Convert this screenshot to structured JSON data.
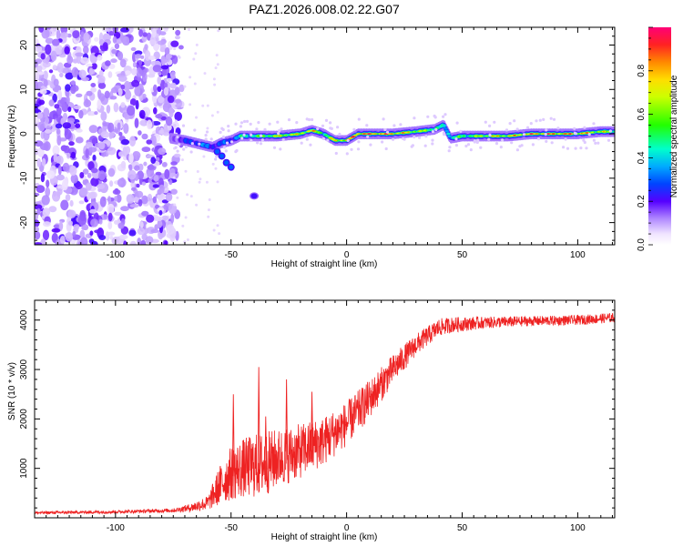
{
  "title": "PAZ1.2026.008.02.22.G07",
  "chart_data": [
    {
      "type": "heatmap",
      "name": "spectrogram",
      "xlabel": "Height of straight line (km)",
      "ylabel": "Frequency (Hz)",
      "xlim": [
        -135,
        116
      ],
      "ylim": [
        -25,
        24
      ],
      "xticks": [
        -100,
        -50,
        0,
        50,
        100
      ],
      "yticks": [
        -20,
        -10,
        0,
        10,
        20
      ],
      "colorbar": {
        "label": "Normalized spectral amplitude",
        "range": [
          0,
          1
        ],
        "ticks": [
          "0.0",
          "0.2",
          "0.4",
          "0.6",
          "0.8"
        ]
      },
      "noise_region_km": [
        -135,
        -75
      ],
      "ridge": {
        "x": [
          -76,
          -70,
          -62,
          -58,
          -54,
          -50,
          -46,
          -40,
          -30,
          -20,
          -15,
          -10,
          -5,
          0,
          5,
          10,
          20,
          30,
          38,
          42,
          45,
          50,
          60,
          70,
          80,
          90,
          100,
          110,
          116
        ],
        "freq": [
          -1,
          -1.5,
          -2.5,
          -3,
          -2,
          -1.5,
          -0.5,
          -0.5,
          -0.5,
          0,
          0.8,
          0,
          -1.5,
          -1.5,
          0,
          0,
          0,
          0.5,
          1,
          2,
          -1,
          -0.5,
          -0.5,
          -0.5,
          0,
          0,
          0,
          0.5,
          0.5
        ],
        "amplitude": [
          0.15,
          0.25,
          0.35,
          0.3,
          0.3,
          0.3,
          0.45,
          0.55,
          0.75,
          0.75,
          0.85,
          0.55,
          0.8,
          0.85,
          0.95,
          0.95,
          0.9,
          0.75,
          0.6,
          0.4,
          0.5,
          0.55,
          0.75,
          0.8,
          0.9,
          0.9,
          0.9,
          0.75,
          0.7
        ]
      },
      "branch": {
        "x": [
          -56,
          -54,
          -52,
          -50
        ],
        "freq": [
          -4,
          -5,
          -6.5,
          -7.5
        ]
      },
      "spot": {
        "x": -40,
        "freq": -14
      }
    },
    {
      "type": "line",
      "name": "snr",
      "xlabel": "Height of straight line (km)",
      "ylabel": "SNR (10 * v/v)",
      "xlim": [
        -135,
        116
      ],
      "ylim": [
        0,
        4400
      ],
      "xticks": [
        -100,
        -50,
        0,
        50,
        100
      ],
      "yticks": [
        1000,
        2000,
        3000,
        4000
      ],
      "color": "#ee2222",
      "envelope": {
        "x": [
          -135,
          -100,
          -75,
          -68,
          -60,
          -55,
          -50,
          -45,
          -40,
          -35,
          -30,
          -20,
          -10,
          0,
          10,
          20,
          30,
          40,
          45,
          60,
          80,
          100,
          116
        ],
        "mean": [
          100,
          120,
          150,
          200,
          300,
          650,
          900,
          1000,
          1050,
          1100,
          1200,
          1350,
          1550,
          1900,
          2400,
          3000,
          3500,
          3850,
          3900,
          3950,
          3980,
          4000,
          4050
        ],
        "spread": [
          30,
          30,
          40,
          80,
          150,
          400,
          550,
          600,
          650,
          650,
          600,
          550,
          500,
          450,
          400,
          300,
          220,
          180,
          160,
          120,
          100,
          100,
          100
        ]
      },
      "spikes": [
        {
          "x": -38,
          "y": 3050
        },
        {
          "x": -49,
          "y": 2500
        },
        {
          "x": -26,
          "y": 2800
        },
        {
          "x": -15,
          "y": 2550
        },
        {
          "x": -35,
          "y": 2050
        }
      ]
    }
  ]
}
